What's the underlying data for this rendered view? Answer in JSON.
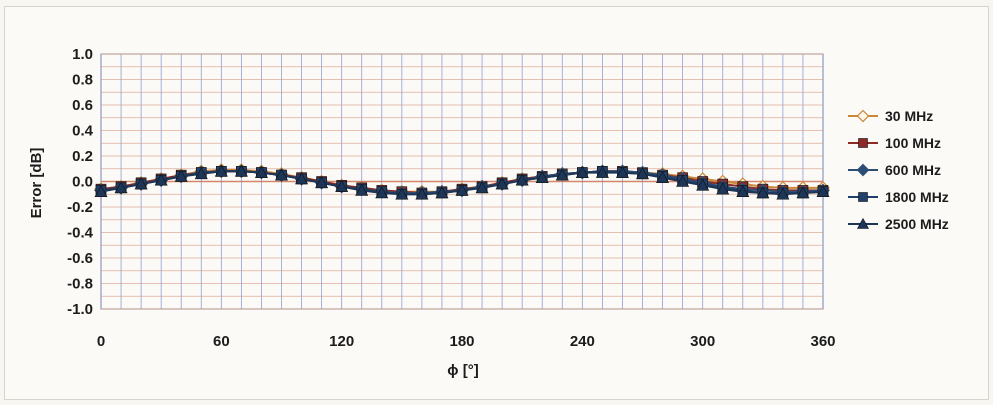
{
  "chart_data": {
    "type": "line",
    "title": "",
    "xlabel": "ϕ [°]",
    "ylabel": "Error [dB]",
    "xlim": [
      0,
      360
    ],
    "ylim": [
      -1.0,
      1.0
    ],
    "x_ticks": [
      "0",
      "60",
      "120",
      "180",
      "240",
      "300",
      "360"
    ],
    "y_ticks": [
      "1.0",
      "0.8",
      "0.6",
      "0.4",
      "0.2",
      "0.0",
      "-0.2",
      "-0.4",
      "-0.6",
      "-0.8",
      "-1.0"
    ],
    "grid": true,
    "legend_position": "right",
    "x": [
      0,
      10,
      20,
      30,
      40,
      50,
      60,
      70,
      80,
      90,
      100,
      110,
      120,
      130,
      140,
      150,
      160,
      170,
      180,
      190,
      200,
      210,
      220,
      230,
      240,
      250,
      260,
      270,
      280,
      290,
      300,
      310,
      320,
      330,
      340,
      350,
      360
    ],
    "series": [
      {
        "name": "30 MHz",
        "marker": "diamond-open",
        "color": "#c9883a",
        "values": [
          -0.06,
          -0.04,
          -0.01,
          0.02,
          0.05,
          0.08,
          0.09,
          0.09,
          0.08,
          0.06,
          0.03,
          0.0,
          -0.03,
          -0.05,
          -0.07,
          -0.08,
          -0.08,
          -0.08,
          -0.06,
          -0.04,
          -0.01,
          0.02,
          0.04,
          0.06,
          0.07,
          0.08,
          0.08,
          0.07,
          0.06,
          0.04,
          0.02,
          0.0,
          -0.02,
          -0.04,
          -0.05,
          -0.05,
          -0.05
        ]
      },
      {
        "name": "100 MHz",
        "marker": "square",
        "color": "#8c2a25",
        "values": [
          -0.06,
          -0.04,
          -0.01,
          0.02,
          0.05,
          0.07,
          0.08,
          0.08,
          0.07,
          0.05,
          0.03,
          0.0,
          -0.03,
          -0.05,
          -0.07,
          -0.08,
          -0.09,
          -0.08,
          -0.06,
          -0.04,
          -0.01,
          0.02,
          0.04,
          0.06,
          0.07,
          0.08,
          0.08,
          0.07,
          0.05,
          0.03,
          0.0,
          -0.02,
          -0.04,
          -0.06,
          -0.07,
          -0.07,
          -0.07
        ]
      },
      {
        "name": "600 MHz",
        "marker": "diamond",
        "color": "#2d4e74",
        "values": [
          -0.07,
          -0.05,
          -0.02,
          0.01,
          0.04,
          0.07,
          0.08,
          0.08,
          0.07,
          0.05,
          0.02,
          -0.01,
          -0.04,
          -0.06,
          -0.08,
          -0.09,
          -0.09,
          -0.08,
          -0.07,
          -0.04,
          -0.02,
          0.01,
          0.04,
          0.06,
          0.07,
          0.08,
          0.08,
          0.07,
          0.05,
          0.02,
          -0.01,
          -0.04,
          -0.06,
          -0.07,
          -0.08,
          -0.08,
          -0.07
        ]
      },
      {
        "name": "1800 MHz",
        "marker": "square",
        "color": "#21406b",
        "values": [
          -0.07,
          -0.05,
          -0.02,
          0.01,
          0.04,
          0.07,
          0.08,
          0.08,
          0.07,
          0.05,
          0.02,
          -0.01,
          -0.04,
          -0.06,
          -0.08,
          -0.1,
          -0.1,
          -0.09,
          -0.07,
          -0.05,
          -0.02,
          0.01,
          0.03,
          0.05,
          0.07,
          0.08,
          0.07,
          0.06,
          0.04,
          0.01,
          -0.02,
          -0.05,
          -0.07,
          -0.09,
          -0.09,
          -0.09,
          -0.08
        ]
      },
      {
        "name": "2500 MHz",
        "marker": "triangle",
        "color": "#1d3556",
        "values": [
          -0.08,
          -0.05,
          -0.02,
          0.01,
          0.04,
          0.06,
          0.08,
          0.08,
          0.07,
          0.05,
          0.02,
          -0.01,
          -0.04,
          -0.07,
          -0.09,
          -0.1,
          -0.1,
          -0.09,
          -0.07,
          -0.05,
          -0.02,
          0.01,
          0.03,
          0.05,
          0.07,
          0.07,
          0.07,
          0.06,
          0.03,
          0.0,
          -0.03,
          -0.06,
          -0.08,
          -0.09,
          -0.1,
          -0.09,
          -0.08
        ]
      }
    ],
    "colors": {
      "grid_vertical": "#6f7fcf",
      "grid_horizontal": "#d59a86",
      "grid_zero": "#c96a4a",
      "plot_bg": "#fbfaf6"
    }
  }
}
